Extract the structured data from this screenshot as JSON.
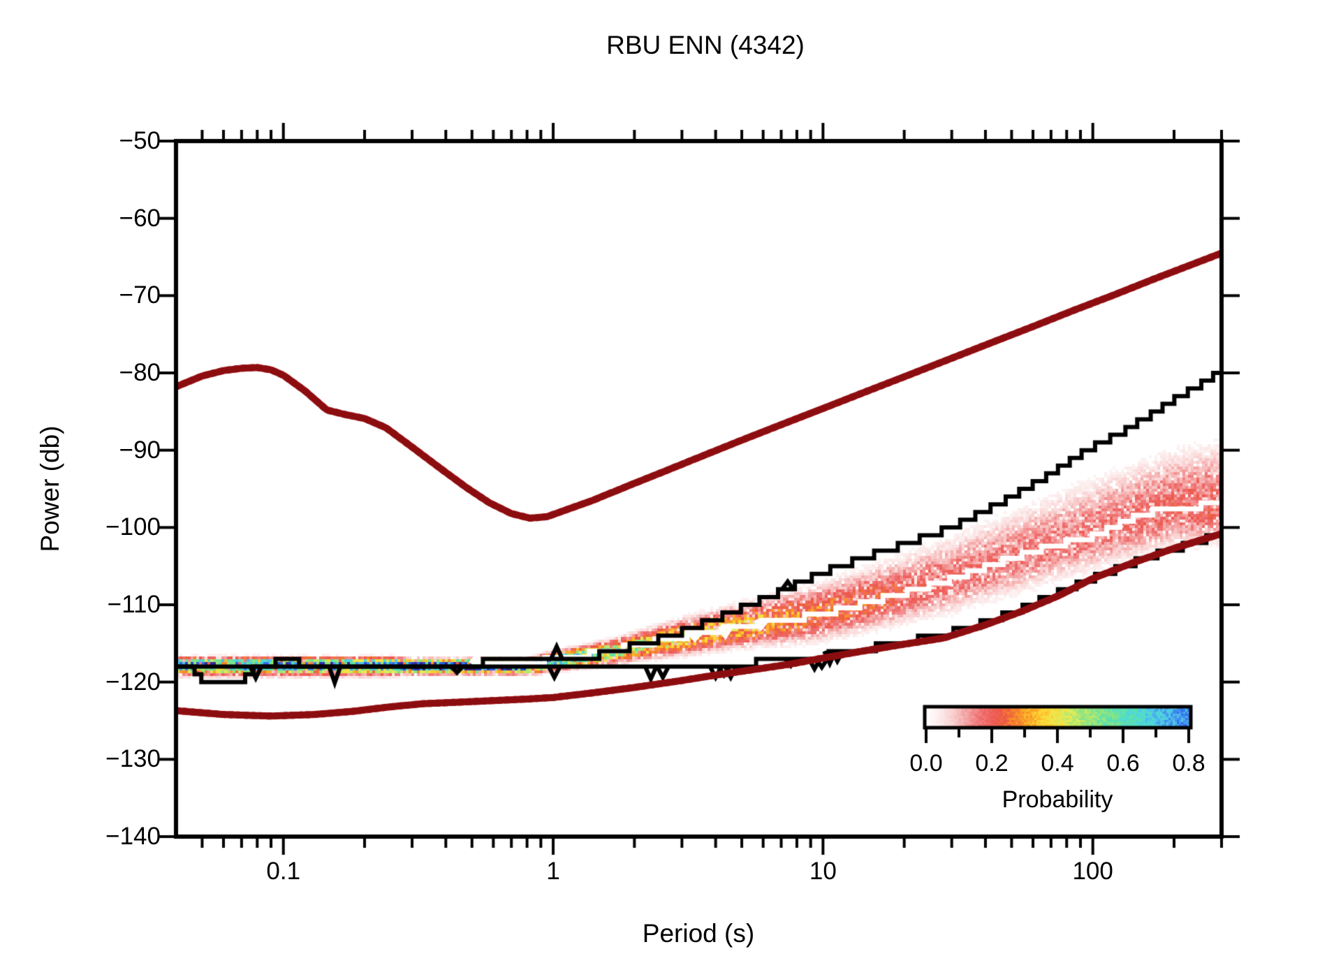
{
  "title": "RBU ENN (4342)",
  "axes": {
    "xlabel": "Period (s)",
    "ylabel": "Power (db)",
    "x": {
      "scale": "log",
      "min": 0.04,
      "max": 300,
      "major_ticks": [
        {
          "value": 0.1,
          "label": "0.1"
        },
        {
          "value": 1,
          "label": "1"
        },
        {
          "value": 10,
          "label": "10"
        },
        {
          "value": 100,
          "label": "100"
        }
      ],
      "minor_ticks": [
        0.05,
        0.06,
        0.07,
        0.08,
        0.09,
        0.2,
        0.3,
        0.4,
        0.5,
        0.6,
        0.7,
        0.8,
        0.9,
        2,
        3,
        4,
        5,
        6,
        7,
        8,
        9,
        20,
        30,
        40,
        50,
        60,
        70,
        80,
        90,
        200,
        300
      ]
    },
    "y": {
      "scale": "linear",
      "min": -140,
      "max": -50,
      "ticks": [
        {
          "value": -50,
          "label": "−50"
        },
        {
          "value": -60,
          "label": "−60"
        },
        {
          "value": -70,
          "label": "−70"
        },
        {
          "value": -80,
          "label": "−80"
        },
        {
          "value": -90,
          "label": "−90"
        },
        {
          "value": -100,
          "label": "−100"
        },
        {
          "value": -110,
          "label": "−110"
        },
        {
          "value": -120,
          "label": "−120"
        },
        {
          "value": -130,
          "label": "−130"
        },
        {
          "value": -140,
          "label": "−140"
        }
      ]
    }
  },
  "colorbar": {
    "title": "Probability",
    "min": 0.0,
    "max": 0.8,
    "major_ticks": [
      {
        "value": 0.0,
        "label": "0.0"
      },
      {
        "value": 0.2,
        "label": "0.2"
      },
      {
        "value": 0.4,
        "label": "0.4"
      },
      {
        "value": 0.6,
        "label": "0.6"
      },
      {
        "value": 0.8,
        "label": "0.8"
      }
    ],
    "minor_ticks": [
      0.1,
      0.3,
      0.5,
      0.7
    ]
  },
  "chart_data": {
    "type": "heatmap",
    "title": "RBU ENN (4342)",
    "xlabel": "Period (s)",
    "ylabel": "Power (db)",
    "xlim": [
      0.04,
      300
    ],
    "ylim": [
      -140,
      -50
    ],
    "legend": "Probability colorbar 0.0-0.8, lower right",
    "colors": {
      "noise_model": "#a81316",
      "noise_model_dark": "#8c0d10",
      "envelope": "#000000",
      "mode_line": "#ffffff",
      "frame": "#000000"
    },
    "colormap_stops": [
      [
        0.0,
        "#ffffff"
      ],
      [
        0.03,
        "#fdeeee"
      ],
      [
        0.06,
        "#fad2d2"
      ],
      [
        0.1,
        "#f49f9f"
      ],
      [
        0.14,
        "#ee6a6a"
      ],
      [
        0.18,
        "#ec5747"
      ],
      [
        0.21,
        "#f47f2e"
      ],
      [
        0.25,
        "#fcaa28"
      ],
      [
        0.29,
        "#fdd835"
      ],
      [
        0.33,
        "#e8ea55"
      ],
      [
        0.37,
        "#b5e96e"
      ],
      [
        0.42,
        "#84e488"
      ],
      [
        0.47,
        "#5ce0ae"
      ],
      [
        0.52,
        "#4edbd6"
      ],
      [
        0.57,
        "#4fc2ea"
      ],
      [
        0.62,
        "#4498ee"
      ],
      [
        0.67,
        "#3372ec"
      ],
      [
        0.72,
        "#2950dc"
      ],
      [
        0.76,
        "#2b35b4"
      ],
      [
        0.8,
        "#3b2488"
      ]
    ],
    "series": {
      "high_noise_model": [
        [
          0.04,
          -81.8
        ],
        [
          0.05,
          -80.4
        ],
        [
          0.06,
          -79.7
        ],
        [
          0.07,
          -79.4
        ],
        [
          0.08,
          -79.3
        ],
        [
          0.09,
          -79.6
        ],
        [
          0.1,
          -80.3
        ],
        [
          0.12,
          -82.3
        ],
        [
          0.145,
          -84.8
        ],
        [
          0.17,
          -85.4
        ],
        [
          0.2,
          -85.9
        ],
        [
          0.24,
          -87.1
        ],
        [
          0.3,
          -89.6
        ],
        [
          0.38,
          -92.3
        ],
        [
          0.48,
          -94.9
        ],
        [
          0.58,
          -96.8
        ],
        [
          0.7,
          -98.2
        ],
        [
          0.82,
          -98.8
        ],
        [
          0.95,
          -98.6
        ],
        [
          1.1,
          -97.8
        ],
        [
          1.4,
          -96.5
        ],
        [
          1.9,
          -94.6
        ],
        [
          2.6,
          -92.7
        ],
        [
          3.6,
          -90.7
        ],
        [
          5,
          -88.7
        ],
        [
          7,
          -86.7
        ],
        [
          10,
          -84.6
        ],
        [
          14,
          -82.6
        ],
        [
          20,
          -80.5
        ],
        [
          29,
          -78.3
        ],
        [
          42,
          -76.1
        ],
        [
          60,
          -74.0
        ],
        [
          85,
          -71.9
        ],
        [
          120,
          -69.9
        ],
        [
          170,
          -67.8
        ],
        [
          240,
          -65.8
        ],
        [
          300,
          -64.5
        ]
      ],
      "low_noise_model": [
        [
          0.04,
          -123.7
        ],
        [
          0.06,
          -124.2
        ],
        [
          0.09,
          -124.4
        ],
        [
          0.13,
          -124.2
        ],
        [
          0.18,
          -123.8
        ],
        [
          0.25,
          -123.2
        ],
        [
          0.33,
          -122.8
        ],
        [
          0.45,
          -122.6
        ],
        [
          0.6,
          -122.4
        ],
        [
          0.8,
          -122.2
        ],
        [
          1.0,
          -122.0
        ],
        [
          1.4,
          -121.4
        ],
        [
          2,
          -120.7
        ],
        [
          3,
          -119.8
        ],
        [
          4,
          -119.1
        ],
        [
          5.5,
          -118.4
        ],
        [
          7.5,
          -117.7
        ],
        [
          10,
          -116.9
        ],
        [
          14,
          -116.0
        ],
        [
          20,
          -115.1
        ],
        [
          28,
          -114.3
        ],
        [
          40,
          -112.6
        ],
        [
          55,
          -110.8
        ],
        [
          75,
          -108.8
        ],
        [
          100,
          -106.6
        ],
        [
          140,
          -104.6
        ],
        [
          200,
          -102.7
        ],
        [
          300,
          -100.8
        ]
      ],
      "max_envelope": [
        [
          0.04,
          -117.9
        ],
        [
          0.09,
          -117.9
        ],
        [
          0.095,
          -117.1
        ],
        [
          0.11,
          -117.1
        ],
        [
          0.116,
          -117.9
        ],
        [
          0.5,
          -117.8
        ],
        [
          0.56,
          -117.4
        ],
        [
          0.98,
          -117.3
        ],
        [
          1.1,
          -117.2
        ],
        [
          1.35,
          -116.8
        ],
        [
          1.7,
          -116.0
        ],
        [
          2.1,
          -115.1
        ],
        [
          2.6,
          -114.2
        ],
        [
          3.2,
          -113.1
        ],
        [
          4,
          -111.8
        ],
        [
          5,
          -110.4
        ],
        [
          6.3,
          -109.0
        ],
        [
          7.9,
          -107.4
        ],
        [
          10,
          -105.8
        ],
        [
          12.5,
          -104.6
        ],
        [
          16,
          -103.3
        ],
        [
          20,
          -102.2
        ],
        [
          25,
          -101.0
        ],
        [
          31,
          -99.7
        ],
        [
          39,
          -98.0
        ],
        [
          49,
          -96.2
        ],
        [
          62,
          -94.2
        ],
        [
          78,
          -92.0
        ],
        [
          98,
          -89.7
        ],
        [
          125,
          -87.9
        ],
        [
          155,
          -85.9
        ],
        [
          195,
          -83.7
        ],
        [
          245,
          -81.7
        ],
        [
          300,
          -79.8
        ]
      ],
      "min_envelope": [
        [
          0.04,
          -118.4
        ],
        [
          0.046,
          -118.4
        ],
        [
          0.05,
          -119.7
        ],
        [
          0.071,
          -119.7
        ],
        [
          0.077,
          -118.4
        ],
        [
          0.15,
          -118.4
        ],
        [
          0.42,
          -118.3
        ],
        [
          1.2,
          -118.3
        ],
        [
          2.2,
          -118.2
        ],
        [
          2.8,
          -118.1
        ],
        [
          3.8,
          -117.9
        ],
        [
          4.9,
          -117.7
        ],
        [
          6.5,
          -117.3
        ],
        [
          8.5,
          -116.9
        ],
        [
          11.5,
          -116.3
        ],
        [
          14,
          -115.8
        ],
        [
          18,
          -115.1
        ],
        [
          24,
          -114.3
        ],
        [
          32,
          -113.3
        ],
        [
          42,
          -112.0
        ],
        [
          56,
          -110.3
        ],
        [
          75,
          -108.4
        ],
        [
          100,
          -106.6
        ],
        [
          135,
          -104.8
        ],
        [
          180,
          -103.3
        ],
        [
          240,
          -102.0
        ],
        [
          300,
          -100.6
        ]
      ],
      "mode_line": [
        [
          0.5,
          -117.5
        ],
        [
          0.8,
          -117.4
        ],
        [
          1.0,
          -117.1
        ],
        [
          1.3,
          -116.5
        ],
        [
          1.7,
          -115.8
        ],
        [
          2.2,
          -115.0
        ],
        [
          2.8,
          -114.3
        ],
        [
          3.6,
          -113.6
        ],
        [
          4.6,
          -113.0
        ],
        [
          5.6,
          -112.5
        ],
        [
          7,
          -112.0
        ],
        [
          8.5,
          -111.6
        ],
        [
          10,
          -111.2
        ],
        [
          12,
          -110.5
        ],
        [
          15,
          -109.6
        ],
        [
          19,
          -108.7
        ],
        [
          24,
          -107.7
        ],
        [
          30,
          -106.7
        ],
        [
          38,
          -105.4
        ],
        [
          48,
          -104.2
        ],
        [
          60,
          -103.1
        ],
        [
          75,
          -102.1
        ],
        [
          90,
          -101.7
        ],
        [
          105,
          -100.9
        ],
        [
          125,
          -99.6
        ],
        [
          145,
          -98.6
        ],
        [
          170,
          -97.9
        ],
        [
          200,
          -97.4
        ],
        [
          250,
          -97.2
        ],
        [
          300,
          -97.1
        ]
      ]
    },
    "spikes": {
      "min_envelope": [
        [
          0.079,
          1.5
        ],
        [
          0.155,
          2.1
        ],
        [
          0.44,
          0.8
        ],
        [
          1.01,
          1.4
        ],
        [
          2.3,
          1.6
        ],
        [
          2.55,
          1.4
        ],
        [
          4.0,
          1.4
        ],
        [
          4.3,
          1.1
        ],
        [
          4.55,
          1.4
        ],
        [
          7.6,
          0.9
        ],
        [
          9.3,
          1.3
        ],
        [
          9.9,
          1.1
        ],
        [
          10.6,
          1.6
        ],
        [
          11.3,
          1.3
        ]
      ],
      "max_envelope": [
        [
          1.03,
          1.6
        ],
        [
          7.4,
          1.0
        ]
      ],
      "mode_line": [
        [
          0.52,
          0.9
        ],
        [
          3.35,
          -0.8
        ],
        [
          4.35,
          -1.2
        ],
        [
          5.9,
          -0.9
        ]
      ]
    },
    "pdf_profile": [
      [
        0.04,
        -117.7,
        0.6,
        0.55,
        0.85
      ],
      [
        0.25,
        -117.7,
        0.6,
        0.55,
        0.85
      ],
      [
        0.3,
        -117.85,
        0.78,
        0.5,
        0.65
      ],
      [
        0.8,
        -117.85,
        0.78,
        0.5,
        0.65
      ],
      [
        1.0,
        -117.25,
        0.52,
        0.7,
        0.8
      ],
      [
        1.6,
        -116.2,
        0.42,
        0.9,
        0.9
      ],
      [
        2.3,
        -115.1,
        0.34,
        1.2,
        1.1
      ],
      [
        3.2,
        -114.1,
        0.28,
        1.5,
        1.4
      ],
      [
        4.5,
        -113.1,
        0.27,
        1.7,
        1.55
      ],
      [
        6.0,
        -112.4,
        0.25,
        1.9,
        1.7
      ],
      [
        9.0,
        -111.5,
        0.21,
        2.2,
        2.0
      ],
      [
        13.0,
        -110.2,
        0.18,
        2.6,
        2.2
      ],
      [
        20.0,
        -108.5,
        0.15,
        3.0,
        2.4
      ],
      [
        30.0,
        -106.8,
        0.13,
        3.4,
        2.6
      ],
      [
        50.0,
        -104.2,
        0.12,
        3.8,
        2.8
      ],
      [
        80.0,
        -101.9,
        0.12,
        4.1,
        2.9
      ],
      [
        120.0,
        -99.9,
        0.13,
        4.3,
        3.0
      ],
      [
        200.0,
        -97.6,
        0.14,
        4.5,
        3.0
      ],
      [
        300.0,
        -97.1,
        0.15,
        4.7,
        3.0
      ]
    ]
  }
}
